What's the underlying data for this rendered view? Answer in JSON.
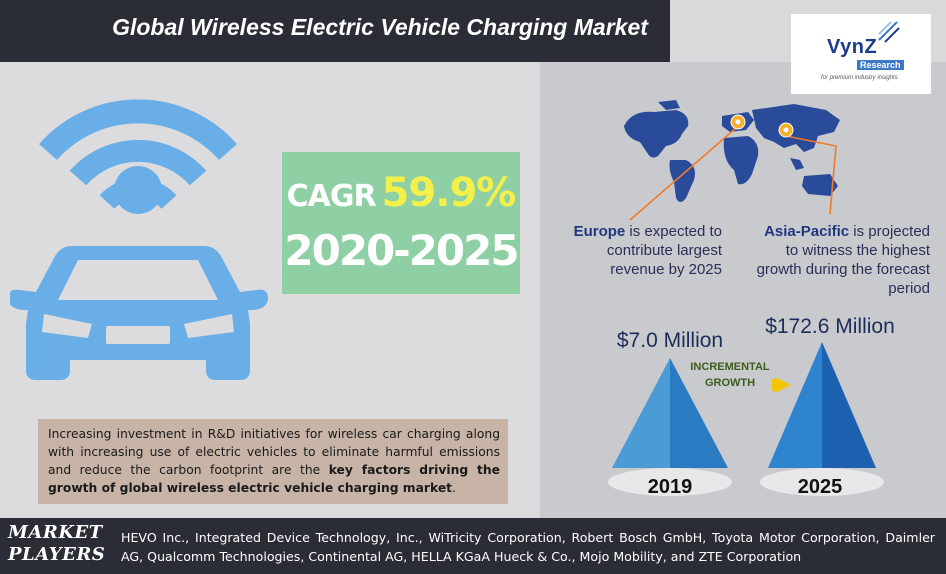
{
  "header": {
    "title": "Global Wireless Electric Vehicle Charging Market"
  },
  "logo": {
    "name": "VynZ",
    "sub": "Research",
    "tagline": "for premium industry insights"
  },
  "cagr": {
    "label": "CAGR",
    "value": "59.9%",
    "period": "2020-2025"
  },
  "description": {
    "text_before": "Increasing investment in R&D initiatives for wireless car charging along with increasing use of electric vehicles to eliminate harmful emissions and reduce the carbon footprint are the ",
    "text_bold": "key factors driving the growth of global wireless electric vehicle charging market",
    "text_after": "."
  },
  "regions": {
    "europe": {
      "name": "Europe",
      "text": " is expected to contribute largest revenue by 2025"
    },
    "apac": {
      "name": "Asia-Pacific",
      "text": " is projected to witness the highest growth during the forecast period"
    }
  },
  "market_values": {
    "y2019": {
      "year": "2019",
      "value": "$7.0 Million"
    },
    "y2025": {
      "year": "2025",
      "value": "$172.6 Million"
    },
    "incremental_label": "INCREMENTAL GROWTH"
  },
  "players": {
    "label": "MARKET PLAYERS",
    "text": "HEVO Inc., Integrated Device Technology, Inc., WiTricity Corporation, Robert Bosch GmbH, Toyota Motor Corporation, Daimler AG, Qualcomm Technologies, Continental AG, HELLA KGaA Hueck & Co., Mojo Mobility, and ZTE Corporation"
  },
  "colors": {
    "dark": "#2a2d36",
    "car_blue": "#6aaee8",
    "cagr_green": "#8fcfa4",
    "cagr_yellow": "#f4f04a",
    "map_blue": "#2a4a9a",
    "pyramid_light": "#3d8fd0",
    "pyramid_dark": "#1f6ab8",
    "arrow_orange": "#f07b2a",
    "incremental_yellow": "#f2c500"
  },
  "icons": [
    "wireless-signal-icon",
    "car-icon",
    "location-pin-icon",
    "world-map"
  ]
}
